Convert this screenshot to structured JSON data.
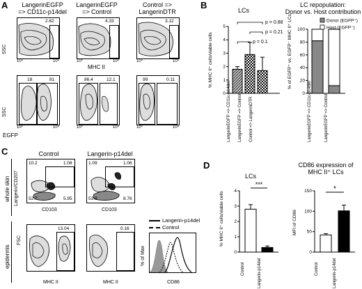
{
  "panels": {
    "A": "A",
    "B": "B",
    "C": "C",
    "D": "D"
  },
  "panelA": {
    "col_titles": [
      [
        "LangerinEGFP",
        "=> CD11c-p14del"
      ],
      [
        "LangerinEGFP",
        "=> Control"
      ],
      [
        "Control =>",
        "LangerinDTR"
      ]
    ],
    "row1": {
      "ylabel": "SSC",
      "xlabel": "MHC II",
      "pcts": [
        "2.62",
        "4.33",
        "3.12"
      ]
    },
    "row2": {
      "ylabel": "SSC",
      "xlabel": "EGFP",
      "pcts": [
        [
          "18",
          "81"
        ],
        [
          "86.4",
          "12.1"
        ],
        [
          "99",
          "0.11"
        ]
      ]
    },
    "ticks": [
      "10⁰",
      "10¹",
      "10²",
      "10³",
      "10⁴"
    ]
  },
  "panelB": {
    "left_title": "LCs",
    "left_ylabel": "% MHC II⁺ cells/viable cells",
    "left_ticks": [
      "0",
      "1",
      "2",
      "3",
      "4",
      "5"
    ],
    "pvalues": [
      "p = 0.88",
      "p = 0.21",
      "p = 0.1"
    ],
    "left_categories": [
      "LangerinEGFP => CD11c-p14del",
      "LangerinEGFP => Control",
      "Control => LangerinDTR"
    ],
    "right_title": [
      "LC repopulation:",
      "Donor vs. Host contribution"
    ],
    "right_ylabel": "% of EGFP⁺ vs. EGFP⁻ MHC II⁺ LCs",
    "right_ticks": [
      "0",
      "20",
      "40",
      "60",
      "80",
      "100"
    ],
    "legend": [
      "Donor (EGFP⁺)",
      "Host (EGFP⁻)"
    ],
    "right_categories": [
      "LangerinEGFP => CD11c-p14del",
      "LangerinEGFP => Control"
    ]
  },
  "panelC": {
    "col_titles": [
      "Control",
      "Langerin-p14del"
    ],
    "row_labels": [
      "whole skin",
      "epidermis"
    ],
    "row1": {
      "ylabel": "Langerin/CD207",
      "xlabel": "CD103",
      "pcts": [
        [
          "10.2",
          "1.08",
          "52.7",
          "5.95"
        ],
        [
          "1.09",
          "1.06",
          "53.8",
          "8.76"
        ]
      ]
    },
    "row2": {
      "ylabel": "FSC",
      "xlabel": "MHC II",
      "pcts": [
        "13.04",
        "0.16"
      ]
    },
    "hist": {
      "ylabel": "% of Max",
      "xlabel": "CD86",
      "legend": [
        "Langerin-p14del",
        "Control"
      ]
    }
  },
  "panelD": {
    "left_title": "LCs",
    "left_ylabel": "% MHC II⁺ cells/viable cells",
    "left_ticks": [
      "0",
      "1",
      "2",
      "3",
      "4"
    ],
    "sig_left": "***",
    "right_title": [
      "CD86 expression of",
      "MHC II⁺ LCs"
    ],
    "right_ylabel": "MFI of CD86",
    "right_ticks": [
      "0",
      "50",
      "100",
      "150"
    ],
    "sig_right": "*",
    "categories": [
      "Control",
      "Langerin-p14del"
    ]
  },
  "chart_data": [
    {
      "type": "bar",
      "title": "LCs",
      "ylabel": "% MHC II⁺ cells/viable cells",
      "ylim": [
        0,
        5
      ],
      "categories": [
        "LangerinEGFP => CD11c-p14del",
        "LangerinEGFP => Control",
        "Control => LangerinDTR"
      ],
      "values": [
        1.8,
        2.9,
        1.7
      ],
      "errors": [
        0.2,
        0.9,
        1.0
      ]
    },
    {
      "type": "bar",
      "title": "LC repopulation: Donor vs. Host contribution",
      "ylim": [
        0,
        100
      ],
      "categories": [
        "LangerinEGFP => CD11c-p14del",
        "LangerinEGFP => Control"
      ],
      "series": [
        {
          "name": "Donor (EGFP⁺)",
          "values": [
            82,
            12
          ]
        },
        {
          "name": "Host (EGFP⁻)",
          "values": [
            18,
            88
          ]
        }
      ]
    },
    {
      "type": "bar",
      "title": "LCs",
      "ylabel": "% MHC II⁺ cells/viable cells",
      "ylim": [
        0,
        4
      ],
      "categories": [
        "Control",
        "Langerin-p14del"
      ],
      "values": [
        2.8,
        0.3
      ],
      "errors": [
        0.3,
        0.1
      ]
    },
    {
      "type": "bar",
      "title": "CD86 expression of MHC II⁺ LCs",
      "ylabel": "MFI of CD86",
      "ylim": [
        0,
        150
      ],
      "categories": [
        "Control",
        "Langerin-p14del"
      ],
      "values": [
        42,
        101
      ],
      "errors": [
        3,
        14
      ]
    }
  ]
}
